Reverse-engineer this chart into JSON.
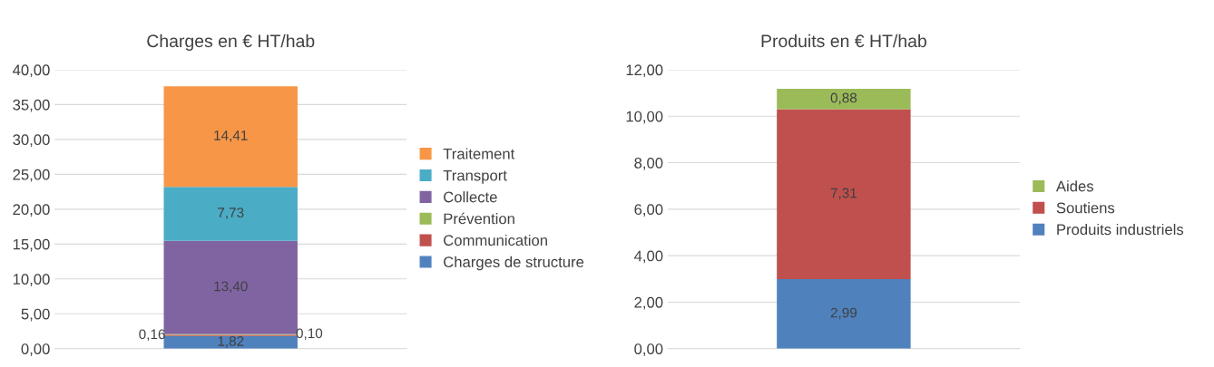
{
  "chart_data": [
    {
      "type": "bar",
      "title": "Charges en € HT/hab",
      "stacked": true,
      "categories": [
        null
      ],
      "legend": "right",
      "grid": "y",
      "ylim": [
        0,
        40
      ],
      "yticks": [
        {
          "value": 0,
          "label": "0,00"
        },
        {
          "value": 5,
          "label": "5,00"
        },
        {
          "value": 10,
          "label": "10,00"
        },
        {
          "value": 15,
          "label": "15,00"
        },
        {
          "value": 20,
          "label": "20,00"
        },
        {
          "value": 25,
          "label": "25,00"
        },
        {
          "value": 30,
          "label": "30,00"
        },
        {
          "value": 35,
          "label": "35,00"
        },
        {
          "value": 40,
          "label": "40,00"
        }
      ],
      "series": [
        {
          "name": "Charges de structure",
          "color": "#4f81bd",
          "values": [
            1.82
          ],
          "value_labels": [
            "1,82"
          ]
        },
        {
          "name": "Communication",
          "color": "#c0504d",
          "values": [
            0.16
          ],
          "value_labels": [
            "0,16"
          ]
        },
        {
          "name": "Prévention",
          "color": "#9bbb59",
          "values": [
            0.1
          ],
          "value_labels": [
            "0,10"
          ]
        },
        {
          "name": "Collecte",
          "color": "#8064a2",
          "values": [
            13.4
          ],
          "value_labels": [
            "13,40"
          ]
        },
        {
          "name": "Transport",
          "color": "#4bacc6",
          "values": [
            7.73
          ],
          "value_labels": [
            "7,73"
          ]
        },
        {
          "name": "Traitement",
          "color": "#f79646",
          "values": [
            14.41
          ],
          "value_labels": [
            "14,41"
          ]
        }
      ]
    },
    {
      "type": "bar",
      "title": "Produits en € HT/hab",
      "stacked": true,
      "categories": [
        null
      ],
      "legend": "right",
      "grid": "y",
      "ylim": [
        0,
        12
      ],
      "yticks": [
        {
          "value": 0,
          "label": "0,00"
        },
        {
          "value": 2,
          "label": "2,00"
        },
        {
          "value": 4,
          "label": "4,00"
        },
        {
          "value": 6,
          "label": "6,00"
        },
        {
          "value": 8,
          "label": "8,00"
        },
        {
          "value": 10,
          "label": "10,00"
        },
        {
          "value": 12,
          "label": "12,00"
        }
      ],
      "series": [
        {
          "name": "Produits industriels",
          "color": "#4f81bd",
          "values": [
            2.99
          ],
          "value_labels": [
            "2,99"
          ]
        },
        {
          "name": "Soutiens",
          "color": "#c0504d",
          "values": [
            7.31
          ],
          "value_labels": [
            "7,31"
          ]
        },
        {
          "name": "Aides",
          "color": "#9bbb59",
          "values": [
            0.88
          ],
          "value_labels": [
            "0,88"
          ]
        }
      ]
    }
  ]
}
